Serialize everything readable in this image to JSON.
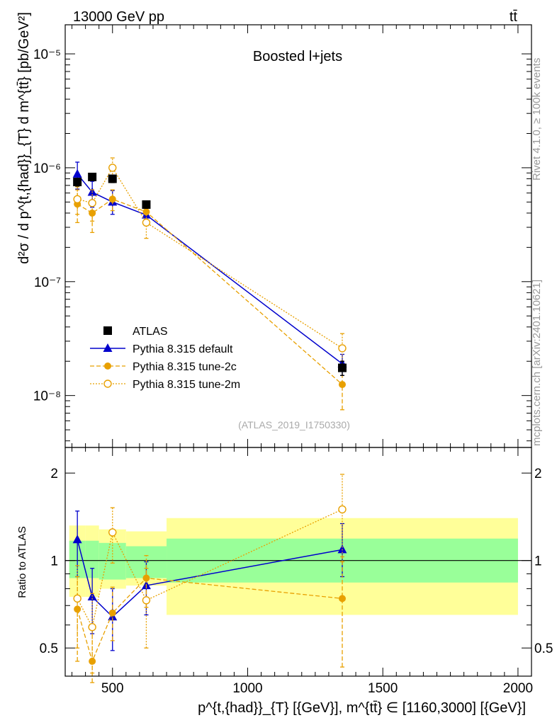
{
  "header": {
    "energy_label": "13000 GeV pp",
    "process_label": "tt̄"
  },
  "side_labels": {
    "rivet": "Rivet 4.1.0, ≥ 100k events",
    "mcplots": "mcplots.cern.ch [arXiv:2401.10621]"
  },
  "chart_data": [
    {
      "type": "scatter",
      "panel": "main",
      "title": "Boosted l+jets",
      "analysis_tag": "(ATLAS_2019_I1750330)",
      "ylabel": "d²σ / d p^{t,{had}}_{T} d m^{tt̄} [pb/GeV²]",
      "yscale": "log",
      "ylim": [
        3.5e-09,
        1.8e-05
      ],
      "xlim": [
        325,
        2050
      ],
      "y_ticks": [
        {
          "value": 1e-08,
          "label": "10⁻⁸"
        },
        {
          "value": 1e-07,
          "label": "10⁻⁷"
        },
        {
          "value": 1e-06,
          "label": "10⁻⁶"
        },
        {
          "value": 1e-05,
          "label": "10⁻⁵"
        }
      ],
      "legend_position": "lower-left",
      "series": [
        {
          "name": "ATLAS",
          "style": "data",
          "color": "#000000",
          "points": [
            {
              "x": 370,
              "y": 7.5e-07,
              "lo": 6.9e-07,
              "hi": 8.1e-07
            },
            {
              "x": 425,
              "y": 8.3e-07,
              "lo": 7.7e-07,
              "hi": 8.9e-07
            },
            {
              "x": 500,
              "y": 8e-07,
              "lo": 7.4e-07,
              "hi": 8.6e-07
            },
            {
              "x": 625,
              "y": 4.75e-07,
              "lo": 4.4e-07,
              "hi": 5.1e-07
            },
            {
              "x": 1350,
              "y": 1.75e-08,
              "lo": 1.5e-08,
              "hi": 2e-08
            }
          ]
        },
        {
          "name": "Pythia 8.315 default",
          "style": "solid-triangle",
          "color": "#0000cc",
          "points": [
            {
              "x": 370,
              "y": 8.8e-07,
              "lo": 6.5e-07,
              "hi": 1.12e-06
            },
            {
              "x": 425,
              "y": 6.1e-07,
              "lo": 4.5e-07,
              "hi": 7.6e-07
            },
            {
              "x": 500,
              "y": 5e-07,
              "lo": 3.9e-07,
              "hi": 6.3e-07
            },
            {
              "x": 625,
              "y": 3.85e-07,
              "lo": 3.1e-07,
              "hi": 4.6e-07
            },
            {
              "x": 1350,
              "y": 1.9e-08,
              "lo": 1.5e-08,
              "hi": 2.3e-08
            }
          ]
        },
        {
          "name": "Pythia 8.315 tune-2c",
          "style": "dashed-circle",
          "color": "#e8a000",
          "points": [
            {
              "x": 370,
              "y": 4.8e-07,
              "lo": 3.3e-07,
              "hi": 6.4e-07
            },
            {
              "x": 425,
              "y": 4e-07,
              "lo": 2.7e-07,
              "hi": 5.2e-07
            },
            {
              "x": 500,
              "y": 5.3e-07,
              "lo": 4.2e-07,
              "hi": 6.4e-07
            },
            {
              "x": 625,
              "y": 4.1e-07,
              "lo": 3.3e-07,
              "hi": 4.9e-07
            },
            {
              "x": 1350,
              "y": 1.25e-08,
              "lo": 7.5e-09,
              "hi": 1.75e-08
            }
          ]
        },
        {
          "name": "Pythia 8.315 tune-2m",
          "style": "dotted-open-circle",
          "color": "#e8a000",
          "points": [
            {
              "x": 370,
              "y": 5.3e-07,
              "lo": 3.9e-07,
              "hi": 6.8e-07
            },
            {
              "x": 425,
              "y": 4.9e-07,
              "lo": 3.4e-07,
              "hi": 6.4e-07
            },
            {
              "x": 500,
              "y": 1e-06,
              "lo": 7.8e-07,
              "hi": 1.22e-06
            },
            {
              "x": 625,
              "y": 3.3e-07,
              "lo": 2.4e-07,
              "hi": 4.2e-07
            },
            {
              "x": 1350,
              "y": 2.6e-08,
              "lo": 1.7e-08,
              "hi": 3.5e-08
            }
          ]
        }
      ]
    },
    {
      "type": "scatter",
      "panel": "ratio",
      "ylabel": "Ratio to ATLAS",
      "xlabel": "p^{t,{had}}_{T} [{GeV}], m^{tt̄} ∈ [1160,3000] [{GeV}]",
      "yscale": "log",
      "ylim": [
        0.4,
        2.45
      ],
      "xlim": [
        325,
        2050
      ],
      "x_ticks": [
        500,
        1000,
        1500,
        2000
      ],
      "y_ticks": [
        {
          "value": 0.5,
          "label": "0.5"
        },
        {
          "value": 1,
          "label": "1"
        },
        {
          "value": 2,
          "label": "2"
        }
      ],
      "bands": [
        {
          "x0": 340,
          "x1": 400,
          "inner": [
            0.87,
            1.17
          ],
          "outer": [
            0.75,
            1.32
          ]
        },
        {
          "x0": 400,
          "x1": 450,
          "inner": [
            0.87,
            1.17
          ],
          "outer": [
            0.75,
            1.32
          ]
        },
        {
          "x0": 450,
          "x1": 550,
          "inner": [
            0.86,
            1.15
          ],
          "outer": [
            0.8,
            1.28
          ]
        },
        {
          "x0": 550,
          "x1": 700,
          "inner": [
            0.87,
            1.12
          ],
          "outer": [
            0.82,
            1.26
          ]
        },
        {
          "x0": 700,
          "x1": 2000,
          "inner": [
            0.84,
            1.19
          ],
          "outer": [
            0.65,
            1.4
          ]
        }
      ],
      "series": [
        {
          "name": "Pythia 8.315 default",
          "style": "solid-triangle",
          "color": "#0000cc",
          "points": [
            {
              "x": 370,
              "y": 1.18,
              "lo": 0.88,
              "hi": 1.48
            },
            {
              "x": 425,
              "y": 0.75,
              "lo": 0.56,
              "hi": 0.94
            },
            {
              "x": 500,
              "y": 0.64,
              "lo": 0.49,
              "hi": 0.8
            },
            {
              "x": 625,
              "y": 0.82,
              "lo": 0.65,
              "hi": 0.99
            },
            {
              "x": 1350,
              "y": 1.09,
              "lo": 0.88,
              "hi": 1.34
            }
          ]
        },
        {
          "name": "Pythia 8.315 tune-2c",
          "style": "dashed-circle",
          "color": "#e8a000",
          "points": [
            {
              "x": 370,
              "y": 0.68,
              "lo": 0.45,
              "hi": 0.88
            },
            {
              "x": 425,
              "y": 0.45,
              "lo": 0.38,
              "hi": 0.6
            },
            {
              "x": 500,
              "y": 0.66,
              "lo": 0.53,
              "hi": 0.81
            },
            {
              "x": 625,
              "y": 0.87,
              "lo": 0.69,
              "hi": 1.04
            },
            {
              "x": 1350,
              "y": 0.74,
              "lo": 0.43,
              "hi": 1.03
            }
          ]
        },
        {
          "name": "Pythia 8.315 tune-2m",
          "style": "dotted-open-circle",
          "color": "#e8a000",
          "points": [
            {
              "x": 370,
              "y": 0.74,
              "lo": 0.5,
              "hi": 0.96
            },
            {
              "x": 425,
              "y": 0.59,
              "lo": 0.41,
              "hi": 0.77
            },
            {
              "x": 500,
              "y": 1.25,
              "lo": 0.98,
              "hi": 1.52
            },
            {
              "x": 625,
              "y": 0.73,
              "lo": 0.5,
              "hi": 0.94
            },
            {
              "x": 1350,
              "y": 1.5,
              "lo": 0.99,
              "hi": 1.98
            }
          ]
        }
      ]
    }
  ]
}
